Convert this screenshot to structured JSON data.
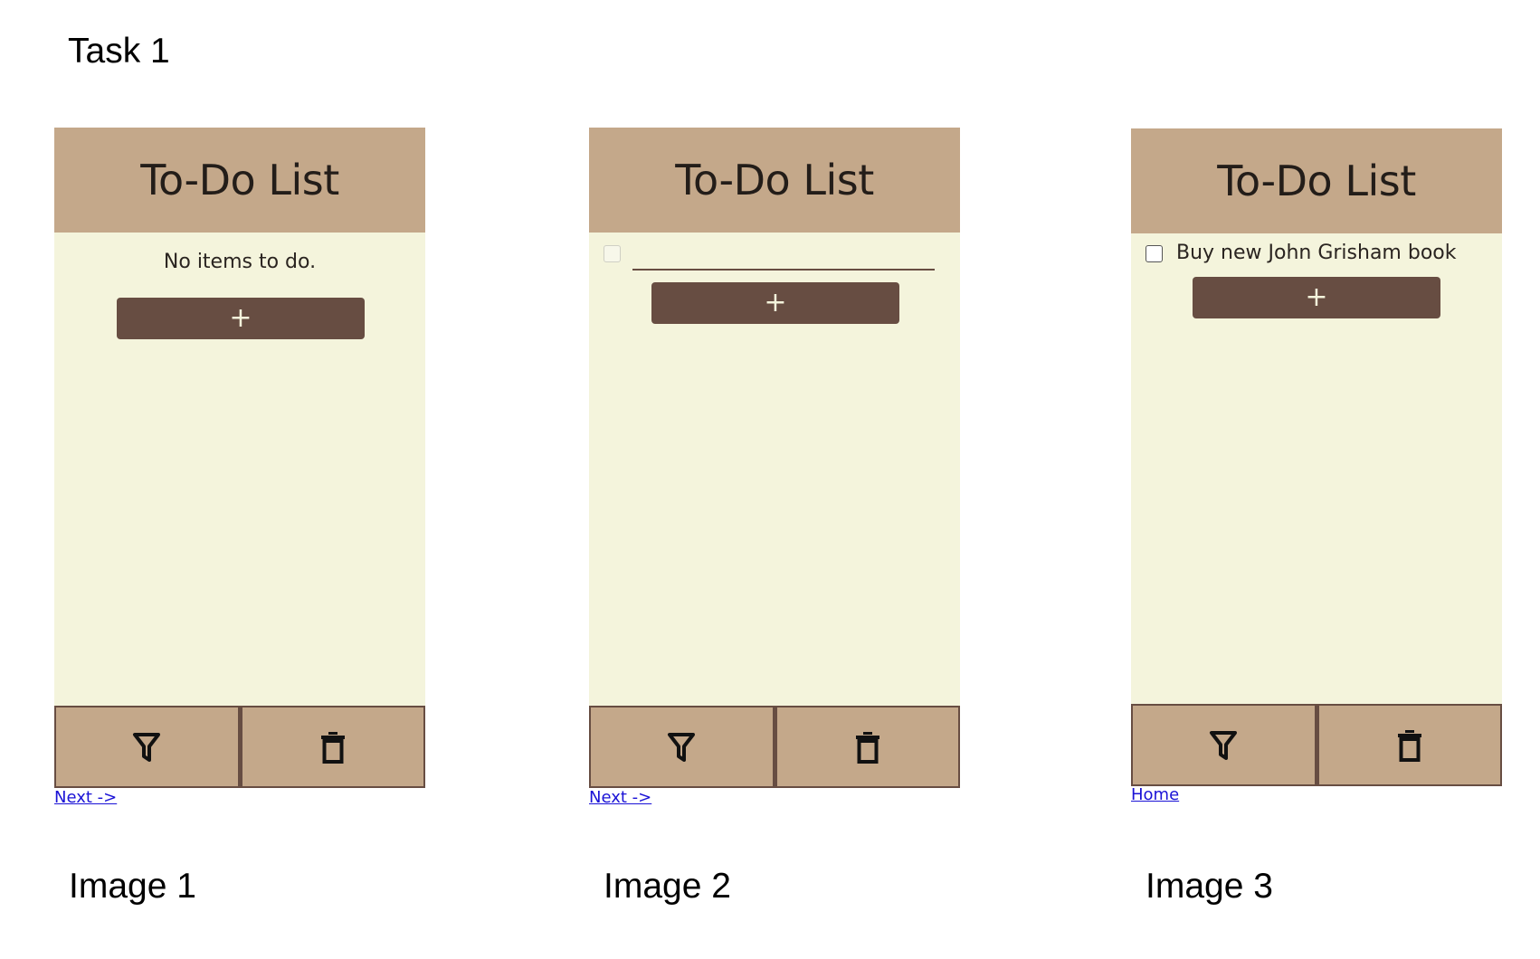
{
  "task_title": "Task 1",
  "captions": [
    "Image 1",
    "Image 2",
    "Image 3"
  ],
  "app": {
    "title": "To-Do List",
    "add_label": "+"
  },
  "screen1": {
    "empty_message": "No items to do.",
    "link": "Next ->"
  },
  "screen2": {
    "input_value": "",
    "link": "Next ->"
  },
  "screen3": {
    "item_text": "Buy new John Grisham book",
    "link": "Home"
  },
  "icons": {
    "filter": "filter-icon",
    "delete": "trash-icon"
  },
  "colors": {
    "header": "#c4a88a",
    "body": "#f4f4dc",
    "button": "#674d42",
    "link": "#1a12d6"
  }
}
